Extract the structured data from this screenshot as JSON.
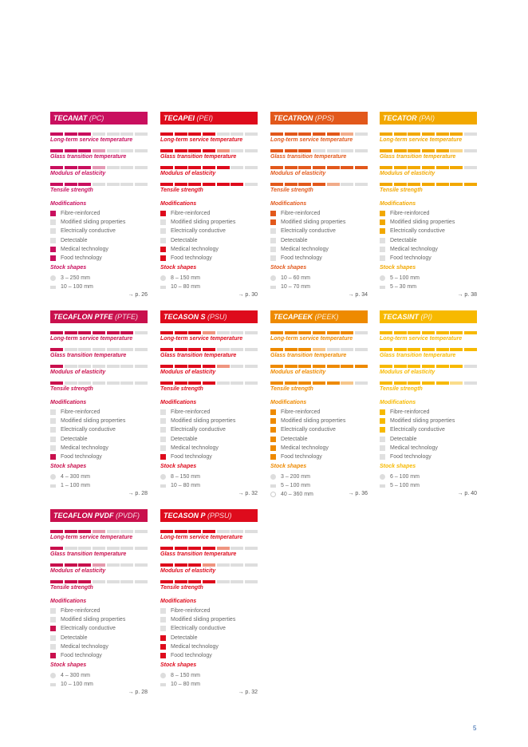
{
  "property_labels": [
    "Long-term service temperature",
    "Glass transition temperature",
    "Modulus of elasticity",
    "Tensile strength"
  ],
  "modifications_heading": "Modifications",
  "modification_labels": [
    "Fibre-reinforced",
    "Modified sliding properties",
    "Electrically conductive",
    "Detectable",
    "Medical technology",
    "Food technology"
  ],
  "stock_heading": "Stock shapes",
  "scale_segments": 7,
  "page_number": "5",
  "cards": [
    {
      "name": "TECANAT",
      "abbr": "(PC)",
      "color": "#c90f5e",
      "light": "#e49ab5",
      "levels": [
        {
          "full": 3,
          "light": 0
        },
        {
          "full": 3,
          "light": 1
        },
        {
          "full": 3,
          "light": 1
        },
        {
          "full": 3,
          "light": 0
        }
      ],
      "mods": [
        true,
        false,
        false,
        false,
        true,
        true
      ],
      "stock": [
        {
          "icon": "circle",
          "text": "3 – 250 mm"
        },
        {
          "icon": "flat",
          "text": "10 – 100 mm"
        }
      ],
      "page": "→ p. 26"
    },
    {
      "name": "TECAPEI",
      "abbr": "(PEI)",
      "color": "#de0b1c",
      "light": "#ef9580",
      "levels": [
        {
          "full": 4,
          "light": 0
        },
        {
          "full": 4,
          "light": 1
        },
        {
          "full": 5,
          "light": 0
        },
        {
          "full": 6,
          "light": 0
        }
      ],
      "mods": [
        true,
        false,
        false,
        false,
        true,
        true
      ],
      "stock": [
        {
          "icon": "circle",
          "text": "8 – 150 mm"
        },
        {
          "icon": "flat",
          "text": "10 – 80 mm"
        }
      ],
      "page": "→ p. 30"
    },
    {
      "name": "TECATRON",
      "abbr": "(PPS)",
      "color": "#e2581b",
      "light": "#f1ac8a",
      "levels": [
        {
          "full": 5,
          "light": 1
        },
        {
          "full": 3,
          "light": 0
        },
        {
          "full": 7,
          "light": 0
        },
        {
          "full": 4,
          "light": 1
        }
      ],
      "mods": [
        true,
        true,
        false,
        false,
        false,
        false
      ],
      "stock": [
        {
          "icon": "circle",
          "text": "10 – 60 mm"
        },
        {
          "icon": "flat",
          "text": "10 – 70 mm"
        }
      ],
      "page": "→ p. 34"
    },
    {
      "name": "TECATOR",
      "abbr": "(PAI)",
      "color": "#f2a800",
      "light": "#f8d58a",
      "levels": [
        {
          "full": 6,
          "light": 0
        },
        {
          "full": 5,
          "light": 1
        },
        {
          "full": 6,
          "light": 0
        },
        {
          "full": 7,
          "light": 0
        }
      ],
      "mods": [
        true,
        true,
        true,
        false,
        false,
        false
      ],
      "stock": [
        {
          "icon": "circle",
          "text": "5 – 100 mm"
        },
        {
          "icon": "flat",
          "text": "5 – 30 mm"
        }
      ],
      "page": "→ p. 38"
    },
    {
      "name": "TECAFLON PTFE",
      "abbr": "(PTFE)",
      "color": "#c9104d",
      "light": "#e49aad",
      "levels": [
        {
          "full": 6,
          "light": 0
        },
        {
          "full": 1,
          "light": 0
        },
        {
          "full": 1,
          "light": 0
        },
        {
          "full": 1,
          "light": 0
        }
      ],
      "mods": [
        false,
        false,
        false,
        false,
        false,
        true
      ],
      "stock": [
        {
          "icon": "circle",
          "text": "4 – 300 mm"
        },
        {
          "icon": "flat",
          "text": "1 – 100 mm"
        }
      ],
      "page": "→ p. 28"
    },
    {
      "name": "TECASON S",
      "abbr": "(PSU)",
      "color": "#de0b1c",
      "light": "#ef9580",
      "levels": [
        {
          "full": 3,
          "light": 1
        },
        {
          "full": 4,
          "light": 0
        },
        {
          "full": 4,
          "light": 1
        },
        {
          "full": 4,
          "light": 0
        }
      ],
      "mods": [
        false,
        false,
        false,
        false,
        false,
        true
      ],
      "stock": [
        {
          "icon": "circle",
          "text": "8 – 150 mm"
        },
        {
          "icon": "flat",
          "text": "10 – 80 mm"
        }
      ],
      "page": "→ p. 32"
    },
    {
      "name": "TECAPEEK",
      "abbr": "(PEEK)",
      "color": "#ee8a00",
      "light": "#f6c58a",
      "levels": [
        {
          "full": 6,
          "light": 0
        },
        {
          "full": 3,
          "light": 1
        },
        {
          "full": 7,
          "light": 0
        },
        {
          "full": 5,
          "light": 1
        }
      ],
      "mods": [
        true,
        true,
        true,
        true,
        true,
        true
      ],
      "stock": [
        {
          "icon": "circle",
          "text": "3 – 200 mm"
        },
        {
          "icon": "flat",
          "text": "5 – 100 mm"
        },
        {
          "icon": "tube",
          "text": "40 – 360 mm"
        }
      ],
      "page": "→ p. 36"
    },
    {
      "name": "TECASINT",
      "abbr": "(PI)",
      "color": "#f7b900",
      "light": "#fadc8a",
      "levels": [
        {
          "full": 7,
          "light": 0
        },
        {
          "full": 7,
          "light": 0
        },
        {
          "full": 6,
          "light": 0
        },
        {
          "full": 5,
          "light": 1
        }
      ],
      "mods": [
        true,
        true,
        true,
        false,
        false,
        false
      ],
      "stock": [
        {
          "icon": "circle",
          "text": "6 – 100 mm"
        },
        {
          "icon": "flat",
          "text": "5 – 100 mm"
        }
      ],
      "page": "→ p. 40"
    },
    {
      "name": "TECAFLON PVDF",
      "abbr": "(PVDF)",
      "color": "#c9104d",
      "light": "#e49aad",
      "levels": [
        {
          "full": 3,
          "light": 1
        },
        {
          "full": 1,
          "light": 0
        },
        {
          "full": 3,
          "light": 1
        },
        {
          "full": 3,
          "light": 0
        }
      ],
      "mods": [
        false,
        false,
        true,
        false,
        false,
        true
      ],
      "stock": [
        {
          "icon": "circle",
          "text": "4 – 300 mm"
        },
        {
          "icon": "flat",
          "text": "10 – 100 mm"
        }
      ],
      "page": "→ p. 28"
    },
    {
      "name": "TECASON P",
      "abbr": "(PPSU)",
      "color": "#de0b1c",
      "light": "#ef9580",
      "levels": [
        {
          "full": 4,
          "light": 0
        },
        {
          "full": 4,
          "light": 1
        },
        {
          "full": 3,
          "light": 1
        },
        {
          "full": 4,
          "light": 0
        }
      ],
      "mods": [
        false,
        false,
        false,
        true,
        true,
        true
      ],
      "stock": [
        {
          "icon": "circle",
          "text": "8 – 150 mm"
        },
        {
          "icon": "flat",
          "text": "10 – 80 mm"
        }
      ],
      "page": "→ p. 32"
    }
  ]
}
